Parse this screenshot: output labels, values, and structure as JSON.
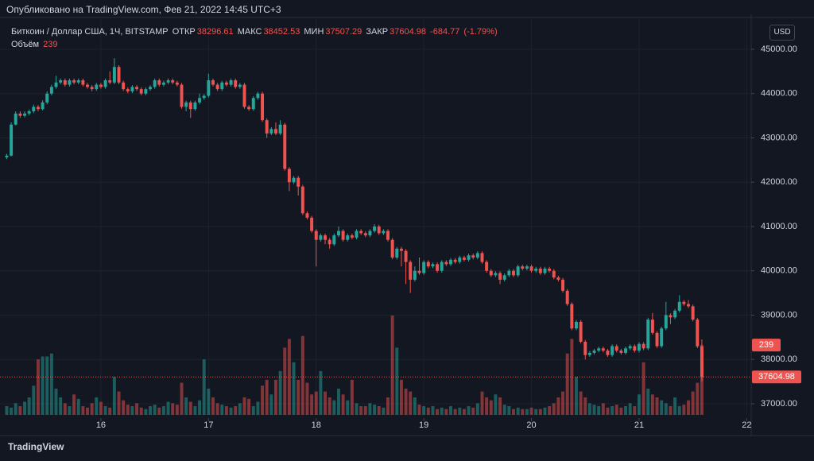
{
  "header": {
    "published": "Опубликовано на TradingView.com, Фев 21, 2022 14:45 UTC+3"
  },
  "legend": {
    "symbol": "Биткоин / Доллар США, 1Ч, BITSTAMP",
    "open_label": "ОТКР",
    "open": 38296.61,
    "high_label": "МАКС",
    "high": 38452.53,
    "low_label": "МИН",
    "low": 37507.29,
    "close_label": "ЗАКР",
    "close": 37604.98,
    "change": -684.77,
    "change_pct": {
      "value": -1.79,
      "label": "(-1.79%)"
    },
    "volume_label": "Объём",
    "volume": 239
  },
  "currency": "USD",
  "footer": {
    "brand": "TradingView"
  },
  "chart_data": {
    "type": "candlestick",
    "up_color": "#26a69a",
    "down_color": "#ef5350",
    "grid": true,
    "xlim": [
      -1.5,
      166
    ],
    "xticks": [
      {
        "value": 21,
        "label": "16"
      },
      {
        "value": 45,
        "label": "17"
      },
      {
        "value": 69,
        "label": "18"
      },
      {
        "value": 93,
        "label": "19"
      },
      {
        "value": 117,
        "label": "20"
      },
      {
        "value": 141,
        "label": "21"
      },
      {
        "value": 165,
        "label": "22"
      }
    ],
    "ylim": [
      36749,
      45717
    ],
    "yticks": [
      {
        "value": 37000,
        "label": "37000.00"
      },
      {
        "value": 38000,
        "label": "38000.00"
      },
      {
        "value": 39000,
        "label": "39000.00"
      },
      {
        "value": 40000,
        "label": "40000.00"
      },
      {
        "value": 41000,
        "label": "41000.00"
      },
      {
        "value": 42000,
        "label": "42000.00"
      },
      {
        "value": 43000,
        "label": "43000.00"
      },
      {
        "value": 44000,
        "label": "44000.00"
      },
      {
        "value": 45000,
        "label": "45000.00"
      }
    ],
    "open": [
      42560,
      42600,
      43300,
      43550,
      43500,
      43550,
      43600,
      43700,
      43650,
      43800,
      44000,
      44150,
      44250,
      44300,
      44200,
      44300,
      44250,
      44300,
      44200,
      44150,
      44100,
      44200,
      44150,
      44300,
      44250,
      44600,
      44250,
      44100,
      44050,
      44150,
      44100,
      44000,
      44100,
      44150,
      44300,
      44200,
      44250,
      44300,
      44250,
      44200,
      43700,
      43800,
      43650,
      43800,
      43900,
      43950,
      44300,
      44200,
      44100,
      44250,
      44200,
      44300,
      44150,
      44200,
      43700,
      43650,
      43900,
      44000,
      43400,
      43100,
      43200,
      43100,
      43300,
      42300,
      42000,
      42100,
      41900,
      41300,
      41200,
      40900,
      40700,
      40800,
      40700,
      40600,
      40800,
      40900,
      40700,
      40800,
      40750,
      40900,
      40850,
      40800,
      40900,
      41000,
      40850,
      40900,
      40700,
      40300,
      40500,
      40450,
      40200,
      39800,
      40000,
      39950,
      40200,
      40100,
      40150,
      40000,
      40200,
      40150,
      40250,
      40200,
      40300,
      40250,
      40350,
      40300,
      40400,
      40200,
      40000,
      39900,
      39950,
      39800,
      39900,
      40000,
      39900,
      40100,
      40050,
      40100,
      40000,
      40050,
      39950,
      40050,
      40000,
      39850,
      39800,
      39550,
      39250,
      38700,
      38850,
      38400,
      38100,
      38150,
      38200,
      38250,
      38200,
      38100,
      38300,
      38200,
      38150,
      38250,
      38300,
      38200,
      38350,
      38250,
      38900,
      38600,
      38300,
      38700,
      39000,
      38950,
      39100,
      39300,
      39250,
      39200,
      38900,
      38296.61
    ],
    "high": [
      42640,
      43350,
      43600,
      43600,
      43600,
      43640,
      43750,
      43740,
      43850,
      44050,
      44200,
      44400,
      44340,
      44340,
      44340,
      44340,
      44340,
      44340,
      44240,
      44190,
      44240,
      44240,
      44340,
      44500,
      44800,
      44640,
      44290,
      44140,
      44190,
      44190,
      44140,
      44140,
      44190,
      44340,
      44340,
      44290,
      44340,
      44340,
      44290,
      44240,
      43840,
      43840,
      43840,
      44000,
      43990,
      44450,
      44340,
      44240,
      44290,
      44290,
      44340,
      44340,
      44240,
      44240,
      43740,
      43940,
      44040,
      44040,
      43440,
      43240,
      43350,
      43400,
      43340,
      42340,
      42140,
      42140,
      41940,
      41340,
      41240,
      40940,
      40840,
      40840,
      40740,
      40840,
      41000,
      40940,
      40840,
      40840,
      40940,
      40940,
      40890,
      40940,
      41050,
      41040,
      40940,
      40940,
      40740,
      40540,
      40540,
      40490,
      40240,
      40100,
      40300,
      40240,
      40240,
      40190,
      40190,
      40240,
      40240,
      40290,
      40290,
      40340,
      40340,
      40390,
      40390,
      40440,
      40440,
      40240,
      40040,
      39990,
      39990,
      39940,
      40040,
      40040,
      40140,
      40140,
      40140,
      40140,
      40090,
      40090,
      40090,
      40090,
      40040,
      39890,
      39840,
      39590,
      39290,
      38890,
      38890,
      38440,
      38190,
      38240,
      38290,
      38290,
      38240,
      38340,
      38340,
      38240,
      38290,
      38340,
      38340,
      38390,
      38390,
      38940,
      39050,
      38640,
      38740,
      39300,
      39040,
      39140,
      39450,
      39340,
      39340,
      39240,
      38940,
      38452.53
    ],
    "low": [
      42520,
      42580,
      43280,
      43450,
      43460,
      43510,
      43560,
      43600,
      43620,
      43760,
      43960,
      44110,
      44210,
      44160,
      44160,
      44210,
      44210,
      44160,
      44110,
      44050,
      44060,
      44110,
      44110,
      44210,
      44210,
      44210,
      44060,
      44010,
      44010,
      44060,
      43960,
      43960,
      44060,
      44110,
      44160,
      44160,
      44210,
      44210,
      44160,
      43660,
      43600,
      43450,
      43610,
      43760,
      43860,
      43910,
      44160,
      44060,
      44060,
      44160,
      44160,
      44110,
      44110,
      43660,
      43610,
      43610,
      43860,
      43360,
      43000,
      43060,
      43060,
      43060,
      42260,
      41800,
      41960,
      41700,
      41260,
      41160,
      40860,
      40100,
      40660,
      40600,
      40500,
      40560,
      40760,
      40660,
      40660,
      40710,
      40710,
      40810,
      40760,
      40760,
      40860,
      40810,
      40810,
      40660,
      40260,
      40260,
      40100,
      39700,
      39500,
      39760,
      39910,
      39910,
      40060,
      40060,
      39960,
      39960,
      40110,
      40110,
      40160,
      40160,
      40210,
      40210,
      40260,
      40260,
      40160,
      39960,
      39860,
      39860,
      39700,
      39760,
      39860,
      39860,
      39860,
      40010,
      40010,
      39960,
      39960,
      39910,
      39910,
      39960,
      39810,
      39760,
      39510,
      39210,
      38660,
      38660,
      38360,
      38000,
      38060,
      38110,
      38160,
      38160,
      38060,
      38060,
      38160,
      38110,
      38110,
      38210,
      38160,
      38160,
      38210,
      38210,
      38560,
      38260,
      38260,
      38660,
      38800,
      38910,
      39060,
      39210,
      39160,
      38860,
      38256,
      37507.29
    ],
    "close": [
      42600,
      43300,
      43550,
      43500,
      43550,
      43600,
      43700,
      43650,
      43800,
      44000,
      44150,
      44250,
      44300,
      44200,
      44300,
      44250,
      44300,
      44200,
      44150,
      44100,
      44200,
      44150,
      44300,
      44250,
      44600,
      44250,
      44100,
      44050,
      44150,
      44100,
      44000,
      44100,
      44150,
      44300,
      44200,
      44250,
      44300,
      44250,
      44200,
      43700,
      43800,
      43650,
      43800,
      43900,
      43950,
      44300,
      44200,
      44100,
      44250,
      44200,
      44300,
      44150,
      44200,
      43700,
      43650,
      43900,
      44000,
      43400,
      43100,
      43200,
      43100,
      43300,
      42300,
      42000,
      42100,
      41900,
      41300,
      41200,
      40900,
      40700,
      40800,
      40700,
      40600,
      40800,
      40900,
      40700,
      40800,
      40750,
      40900,
      40850,
      40800,
      40900,
      41000,
      40850,
      40900,
      40700,
      40300,
      40500,
      40450,
      40200,
      39800,
      40000,
      39950,
      40200,
      40100,
      40150,
      40000,
      40200,
      40150,
      40250,
      40200,
      40300,
      40250,
      40350,
      40300,
      40400,
      40200,
      40000,
      39900,
      39950,
      39800,
      39900,
      40000,
      39900,
      40100,
      40050,
      40100,
      40000,
      40050,
      39950,
      40050,
      40000,
      39850,
      39800,
      39550,
      39250,
      38700,
      38850,
      38400,
      38100,
      38150,
      38200,
      38250,
      38200,
      38100,
      38300,
      38200,
      38150,
      38250,
      38300,
      38200,
      38350,
      38250,
      38900,
      38600,
      38300,
      38700,
      39000,
      38950,
      39100,
      39300,
      39250,
      39200,
      38900,
      38296.61,
      37604.98
    ],
    "volume": [
      30,
      25,
      40,
      30,
      45,
      60,
      100,
      190,
      200,
      200,
      210,
      90,
      60,
      40,
      30,
      70,
      55,
      30,
      25,
      40,
      60,
      45,
      30,
      25,
      130,
      80,
      50,
      35,
      30,
      40,
      25,
      20,
      30,
      35,
      25,
      30,
      45,
      40,
      35,
      110,
      60,
      45,
      30,
      50,
      190,
      90,
      60,
      40,
      35,
      30,
      25,
      30,
      40,
      60,
      55,
      30,
      45,
      100,
      120,
      70,
      120,
      150,
      230,
      260,
      180,
      120,
      270,
      110,
      70,
      80,
      150,
      80,
      60,
      50,
      90,
      70,
      50,
      120,
      40,
      30,
      30,
      40,
      35,
      30,
      25,
      60,
      340,
      230,
      120,
      90,
      80,
      60,
      35,
      30,
      25,
      30,
      20,
      25,
      20,
      30,
      20,
      25,
      20,
      30,
      25,
      40,
      80,
      60,
      50,
      70,
      60,
      35,
      30,
      20,
      25,
      20,
      20,
      25,
      20,
      20,
      25,
      30,
      40,
      60,
      80,
      210,
      260,
      130,
      80,
      60,
      40,
      35,
      30,
      40,
      25,
      30,
      35,
      25,
      30,
      40,
      30,
      70,
      180,
      90,
      70,
      60,
      50,
      40,
      30,
      60,
      30,
      35,
      50,
      80,
      110,
      239
    ]
  }
}
